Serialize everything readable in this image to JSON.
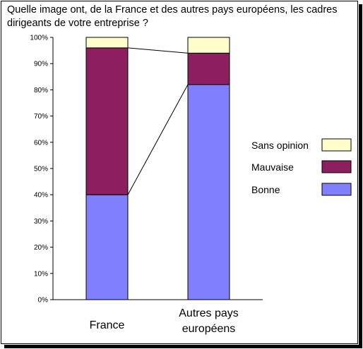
{
  "title": "Quelle image ont, de la France et des autres pays européens, les cadres dirigeants de votre entreprise ?",
  "chart_data": {
    "type": "bar",
    "stacked": true,
    "categories": [
      "France",
      "Autres pays\neuropéens"
    ],
    "series": [
      {
        "name": "Bonne",
        "values": [
          40,
          82
        ],
        "color": "#8080FF"
      },
      {
        "name": "Mauvaise",
        "values": [
          56,
          12
        ],
        "color": "#8B1F5F"
      },
      {
        "name": "Sans opinion",
        "values": [
          4,
          6
        ],
        "color": "#FFFFCC"
      }
    ],
    "ylim": [
      0,
      100
    ],
    "yticks": [
      "0%",
      "10%",
      "20%",
      "30%",
      "40%",
      "50%",
      "60%",
      "70%",
      "80%",
      "90%",
      "100%"
    ],
    "series_lines": true,
    "grid": false,
    "legend": "right"
  }
}
